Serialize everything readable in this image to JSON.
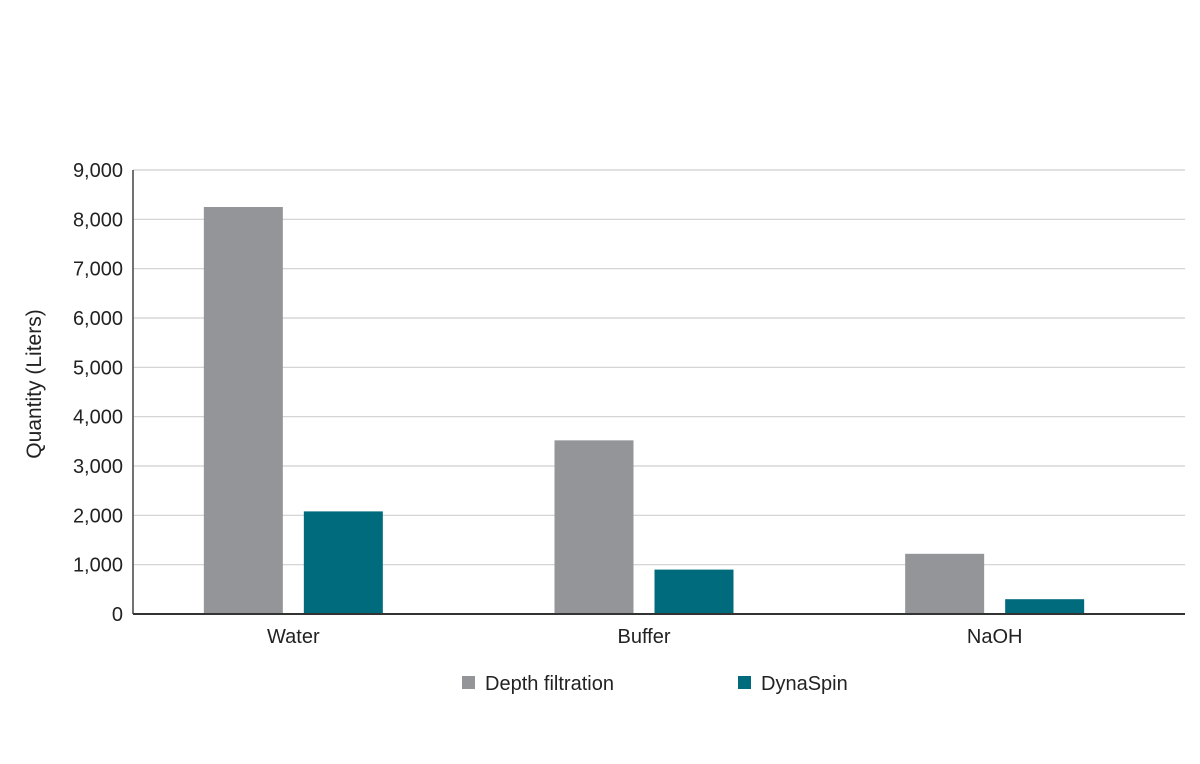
{
  "chart_data": {
    "type": "bar",
    "title": "",
    "xlabel": "",
    "ylabel": "Quantity (Liters)",
    "categories": [
      "Water",
      "Buffer",
      "NaOH"
    ],
    "series": [
      {
        "name": "Depth filtration",
        "color": "#939598",
        "values": [
          8250,
          3520,
          1220
        ]
      },
      {
        "name": "DynaSpin",
        "color": "#006b7d",
        "values": [
          2080,
          900,
          300
        ]
      }
    ],
    "ylim": [
      0,
      9000
    ],
    "yticks": [
      0,
      1000,
      2000,
      3000,
      4000,
      5000,
      6000,
      7000,
      8000,
      9000
    ],
    "ytick_labels": [
      "0",
      "1,000",
      "2,000",
      "3,000",
      "4,000",
      "5,000",
      "6,000",
      "7,000",
      "8,000",
      "9,000"
    ],
    "grid": true,
    "legend_position": "bottom-center"
  }
}
